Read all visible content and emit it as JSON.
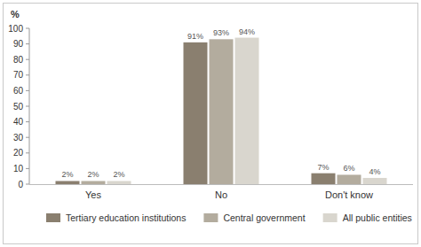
{
  "chart_data": {
    "type": "bar",
    "ylabel": "%",
    "categories": [
      "Yes",
      "No",
      "Don't know"
    ],
    "series": [
      {
        "name": "Tertiary education institutions",
        "color": "#8a7f6f",
        "values": [
          2,
          91,
          7
        ],
        "value_labels": [
          "2%",
          "91%",
          "7%"
        ]
      },
      {
        "name": "Central government",
        "color": "#b3ac9e",
        "values": [
          2,
          93,
          6
        ],
        "value_labels": [
          "2%",
          "93%",
          "6%"
        ]
      },
      {
        "name": "All public entities",
        "color": "#d9d6ce",
        "values": [
          2,
          94,
          4
        ],
        "value_labels": [
          "2%",
          "94%",
          "4%"
        ]
      }
    ],
    "ylim": [
      0,
      100
    ],
    "yticks": [
      0,
      10,
      20,
      30,
      40,
      50,
      60,
      70,
      80,
      90,
      100
    ],
    "grid": false,
    "legend": "bottom",
    "data_labels": true
  }
}
